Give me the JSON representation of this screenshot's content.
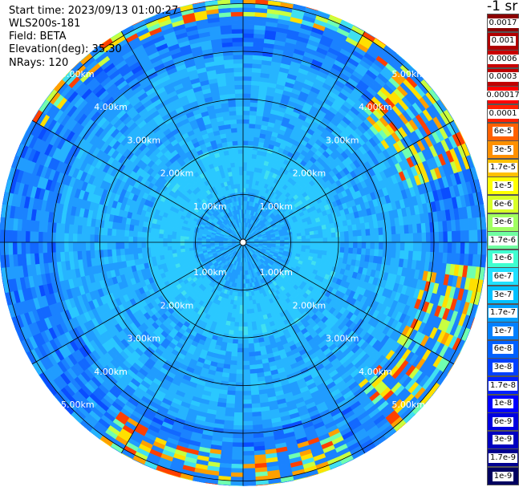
{
  "info": {
    "start_time": "Start time: 2023/09/13 01:00:27",
    "instrument": "WLS200s-181",
    "field": "Field: BETA",
    "elevation": "Elevation(deg): 35.30",
    "nrays": "NRays: 120"
  },
  "chart_data": {
    "type": "heatmap",
    "projection": "polar",
    "range_rings_km": [
      1,
      2,
      3,
      4,
      5
    ],
    "ring_label_suffix": "km",
    "ray_count": 120
  },
  "colorbar": {
    "unit": "-1 sr",
    "labels": [
      "0.0017",
      "0.001",
      "0.0006",
      "0.0003",
      "0.00017",
      "0.0001",
      "6e-5",
      "3e-5",
      "1.7e-5",
      "1e-5",
      "6e-6",
      "3e-6",
      "1.7e-6",
      "1e-6",
      "6e-7",
      "3e-7",
      "1.7e-7",
      "1e-7",
      "6e-8",
      "3e-8",
      "1.7e-8",
      "1e-8",
      "6e-9",
      "3e-9",
      "1.7e-9",
      "1e-9"
    ],
    "colors": [
      "#8b0000",
      "#b00000",
      "#c80000",
      "#c00000",
      "#ff0000",
      "#ff2000",
      "#ff6000",
      "#ff9000",
      "#ffc000",
      "#ffff00",
      "#d8ff28",
      "#a0ff60",
      "#70ffa0",
      "#40ffd0",
      "#20e0ff",
      "#00c0ff",
      "#00a0ff",
      "#0080ff",
      "#0060ff",
      "#0040ff",
      "#0020ff",
      "#0000ff",
      "#0000e0",
      "#0000c0",
      "#000090",
      "#000060"
    ]
  }
}
